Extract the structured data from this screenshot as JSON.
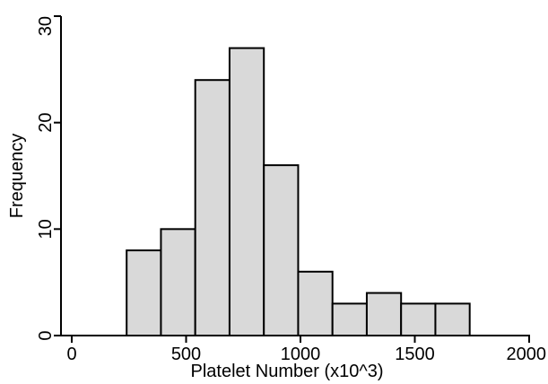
{
  "chart_data": {
    "type": "bar",
    "title": "",
    "xlabel": "Platelet Number (x10^3)",
    "ylabel": "Frequency",
    "xlim": [
      0,
      2000
    ],
    "ylim": [
      0,
      30
    ],
    "xticks": [
      "0",
      "500",
      "1000",
      "1500",
      "2000"
    ],
    "yticks": [
      "0",
      "10",
      "20",
      "30"
    ],
    "grid": false,
    "bar_fill": "#d9d9d9",
    "bar_edge": "#000000",
    "bins": [
      {
        "x0": 240,
        "x1": 390,
        "value": 8
      },
      {
        "x0": 390,
        "x1": 540,
        "value": 10
      },
      {
        "x0": 540,
        "x1": 690,
        "value": 24
      },
      {
        "x0": 690,
        "x1": 840,
        "value": 27
      },
      {
        "x0": 840,
        "x1": 990,
        "value": 16
      },
      {
        "x0": 990,
        "x1": 1140,
        "value": 6
      },
      {
        "x0": 1140,
        "x1": 1290,
        "value": 3
      },
      {
        "x0": 1290,
        "x1": 1440,
        "value": 4
      },
      {
        "x0": 1440,
        "x1": 1590,
        "value": 3
      },
      {
        "x0": 1590,
        "x1": 1740,
        "value": 3
      }
    ]
  }
}
